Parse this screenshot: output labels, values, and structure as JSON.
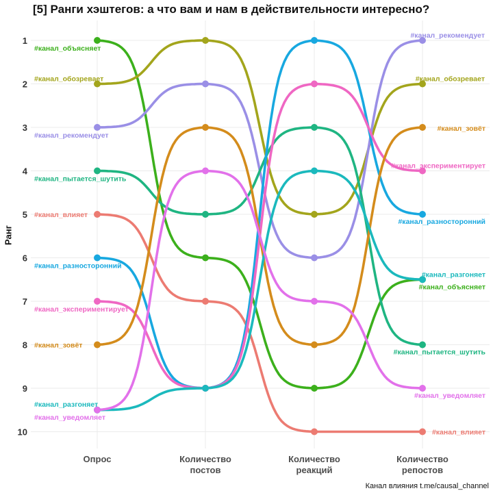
{
  "chart_data": {
    "type": "line",
    "title": "[5] Ранги хэштегов: а что вам и нам в действительности интересно?",
    "ylabel": "Ранг",
    "y_reversed": true,
    "ylim": [
      1,
      10
    ],
    "y_ticks": [
      "1",
      "2",
      "3",
      "4",
      "5",
      "6",
      "7",
      "8",
      "9",
      "10"
    ],
    "categories": [
      [
        "Опрос"
      ],
      [
        "Количество",
        "постов"
      ],
      [
        "Количество",
        "реакций"
      ],
      [
        "Количество",
        "репостов"
      ]
    ],
    "series": [
      {
        "name": "#канал_объясняет",
        "color": "#3cb01c",
        "values": [
          1,
          6,
          9,
          6.5
        ]
      },
      {
        "name": "#канал_обозревает",
        "color": "#a3a51c",
        "values": [
          2,
          1,
          5,
          2
        ]
      },
      {
        "name": "#канал_рекомендует",
        "color": "#9a8fe6",
        "values": [
          3,
          2,
          6,
          1
        ]
      },
      {
        "name": "#канал_пытается_шутить",
        "color": "#1fb582",
        "values": [
          4,
          5,
          3,
          8
        ]
      },
      {
        "name": "#канал_влияет",
        "color": "#ec7b72",
        "values": [
          5,
          7,
          10,
          10
        ]
      },
      {
        "name": "#канал_разносторонний",
        "color": "#18a8e0",
        "values": [
          6,
          9,
          1,
          5
        ]
      },
      {
        "name": "#канал_экспериментирует",
        "color": "#ef67c3",
        "values": [
          7,
          9,
          2,
          4
        ]
      },
      {
        "name": "#канал_зовёт",
        "color": "#d48c1c",
        "values": [
          8,
          3,
          8,
          3
        ]
      },
      {
        "name": "#канал_разгоняет",
        "color": "#1bb9bd",
        "values": [
          9.5,
          9,
          4,
          6.5
        ]
      },
      {
        "name": "#канал_уведомляет",
        "color": "#e271ea",
        "values": [
          9.5,
          4,
          7,
          9
        ]
      }
    ],
    "left_labels": [
      {
        "text": "#канал_объясняет",
        "series": 0
      },
      {
        "text": "#канал_обозревает",
        "series": 1
      },
      {
        "text": "#канал_рекомендует",
        "series": 2
      },
      {
        "text": "#канал_пытается_шутить",
        "series": 3
      },
      {
        "text": "#канал_влияет",
        "series": 4
      },
      {
        "text": "#канал_разносторонний",
        "series": 5
      },
      {
        "text": "#канал_экспериментирует",
        "series": 6
      },
      {
        "text": "#канал_зовёт",
        "series": 7
      },
      {
        "text": "#канал_разгоняет",
        "series": 8
      },
      {
        "text": "#канал_уведомляет",
        "series": 9
      }
    ],
    "right_labels": [
      {
        "text": "#канал_рекомендует",
        "series": 2
      },
      {
        "text": "#канал_обозревает",
        "series": 1
      },
      {
        "text": "#канал_зовёт",
        "series": 7
      },
      {
        "text": "#канал_экспериментирует",
        "series": 6
      },
      {
        "text": "#канал_разносторонний",
        "series": 5
      },
      {
        "text": "#канал_разгоняет",
        "series": 8
      },
      {
        "text": "#канал_объясняет",
        "series": 0
      },
      {
        "text": "#канал_пытается_шутить",
        "series": 3
      },
      {
        "text": "#канал_уведомляет",
        "series": 9
      },
      {
        "text": "#канал_влияет",
        "series": 4
      }
    ],
    "grid": true,
    "legend": "none"
  },
  "caption": "Канал влияния   t.me/causal_channel"
}
